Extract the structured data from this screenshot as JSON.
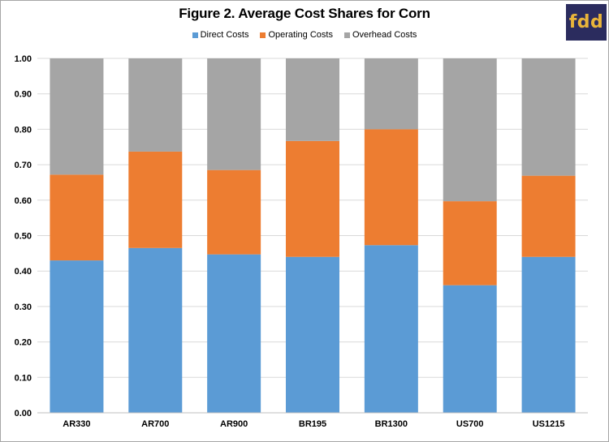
{
  "chart_data": {
    "type": "bar",
    "stacked": true,
    "title": "Figure 2. Average Cost Shares for Corn",
    "xlabel": "",
    "ylabel": "",
    "ylim": [
      0,
      1
    ],
    "yticks": [
      "0.00",
      "0.10",
      "0.20",
      "0.30",
      "0.40",
      "0.50",
      "0.60",
      "0.70",
      "0.80",
      "0.90",
      "1.00"
    ],
    "grid": true,
    "legend": "top-center",
    "categories": [
      "AR330",
      "AR700",
      "AR900",
      "BR195",
      "BR1300",
      "US700",
      "US1215"
    ],
    "series": [
      {
        "name": "Direct Costs",
        "color": "#5b9bd5",
        "values": [
          0.43,
          0.465,
          0.447,
          0.44,
          0.473,
          0.36,
          0.44
        ]
      },
      {
        "name": "Operating Costs",
        "color": "#ed7d31",
        "values": [
          0.242,
          0.272,
          0.238,
          0.327,
          0.327,
          0.237,
          0.229
        ]
      },
      {
        "name": "Overhead Costs",
        "color": "#a5a5a5",
        "values": [
          0.328,
          0.263,
          0.315,
          0.233,
          0.2,
          0.403,
          0.331
        ]
      }
    ]
  },
  "logo": {
    "text": "fdd"
  }
}
